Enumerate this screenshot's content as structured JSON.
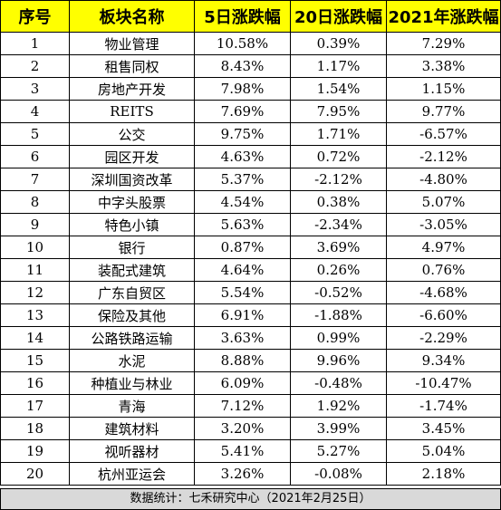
{
  "headers": [
    "序号",
    "板块名称",
    "5日涨跌幅",
    "20日涨跌幅",
    "2021年涨跌幅"
  ],
  "rows": [
    {
      "idx": "1",
      "name": "物业管理",
      "d5": "10.58%",
      "d20": "0.39%",
      "ytd": "7.29%"
    },
    {
      "idx": "2",
      "name": "租售同权",
      "d5": "8.43%",
      "d20": "1.17%",
      "ytd": "3.38%"
    },
    {
      "idx": "3",
      "name": "房地产开发",
      "d5": "7.98%",
      "d20": "1.54%",
      "ytd": "1.15%"
    },
    {
      "idx": "4",
      "name": "REITS",
      "d5": "7.69%",
      "d20": "7.95%",
      "ytd": "9.77%"
    },
    {
      "idx": "5",
      "name": "公交",
      "d5": "9.75%",
      "d20": "1.71%",
      "ytd": "-6.57%"
    },
    {
      "idx": "6",
      "name": "园区开发",
      "d5": "4.63%",
      "d20": "0.72%",
      "ytd": "-2.12%"
    },
    {
      "idx": "7",
      "name": "深圳国资改革",
      "d5": "5.37%",
      "d20": "-2.12%",
      "ytd": "-4.80%"
    },
    {
      "idx": "8",
      "name": "中字头股票",
      "d5": "4.54%",
      "d20": "0.38%",
      "ytd": "5.07%"
    },
    {
      "idx": "9",
      "name": "特色小镇",
      "d5": "5.63%",
      "d20": "-2.34%",
      "ytd": "-3.05%"
    },
    {
      "idx": "10",
      "name": "银行",
      "d5": "0.87%",
      "d20": "3.69%",
      "ytd": "4.97%"
    },
    {
      "idx": "11",
      "name": "装配式建筑",
      "d5": "4.64%",
      "d20": "0.26%",
      "ytd": "0.76%"
    },
    {
      "idx": "12",
      "name": "广东自贸区",
      "d5": "5.54%",
      "d20": "-0.52%",
      "ytd": "-4.68%"
    },
    {
      "idx": "13",
      "name": "保险及其他",
      "d5": "6.91%",
      "d20": "-1.88%",
      "ytd": "-6.60%"
    },
    {
      "idx": "14",
      "name": "公路铁路运输",
      "d5": "3.63%",
      "d20": "0.99%",
      "ytd": "-2.29%"
    },
    {
      "idx": "15",
      "name": "水泥",
      "d5": "8.88%",
      "d20": "9.96%",
      "ytd": "9.34%"
    },
    {
      "idx": "16",
      "name": "种植业与林业",
      "d5": "6.09%",
      "d20": "-0.48%",
      "ytd": "-10.47%"
    },
    {
      "idx": "17",
      "name": "青海",
      "d5": "7.12%",
      "d20": "1.92%",
      "ytd": "-1.74%"
    },
    {
      "idx": "18",
      "name": "建筑材料",
      "d5": "3.20%",
      "d20": "3.99%",
      "ytd": "3.45%"
    },
    {
      "idx": "19",
      "name": "视听器材",
      "d5": "5.41%",
      "d20": "5.27%",
      "ytd": "5.04%"
    },
    {
      "idx": "20",
      "name": "杭州亚运会",
      "d5": "3.26%",
      "d20": "-0.08%",
      "ytd": "2.18%"
    }
  ],
  "footer": "数据统计：七禾研究中心（2021年2月25日）",
  "colors": {
    "header_bg": "#ffff00",
    "footer_bg": "#d9d9d9",
    "border": "#000000"
  }
}
